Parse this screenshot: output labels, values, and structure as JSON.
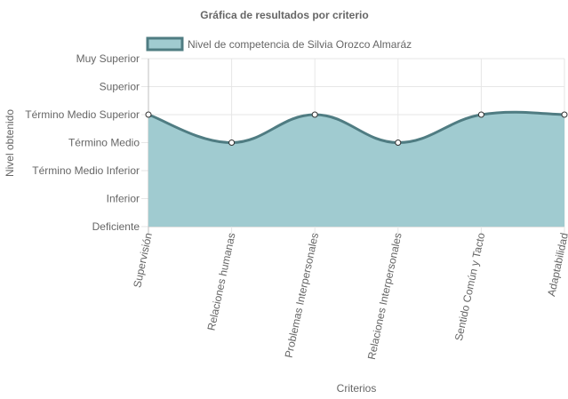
{
  "chart_data": {
    "type": "area",
    "title": "Gráfica de resultados por criterio",
    "xlabel": "Criterios",
    "ylabel": "Nivel obtenido",
    "y_levels": [
      "Deficiente",
      "Inferior",
      "Término Medio Inferior",
      "Término Medio",
      "Término Medio Superior",
      "Superior",
      "Muy Superior"
    ],
    "categories": [
      "Supervisión",
      "Relaciones humanas",
      "Problemas Interpersonales",
      "Relaciones Interpersonales",
      "Sentido Común y Tacto",
      "Adaptabilidad"
    ],
    "series": [
      {
        "name": "Nivel de competencia de Silvia Orozco Almaráz",
        "values": [
          "Término Medio Superior",
          "Término Medio",
          "Término Medio Superior",
          "Término Medio",
          "Término Medio Superior",
          "Término Medio Superior"
        ]
      }
    ],
    "colors": {
      "fill": "#a0cbd0",
      "line": "#4f7c82",
      "grid": "#e6e6e6",
      "axis": "#bfbfbf"
    },
    "grid": true,
    "legend": "top"
  }
}
